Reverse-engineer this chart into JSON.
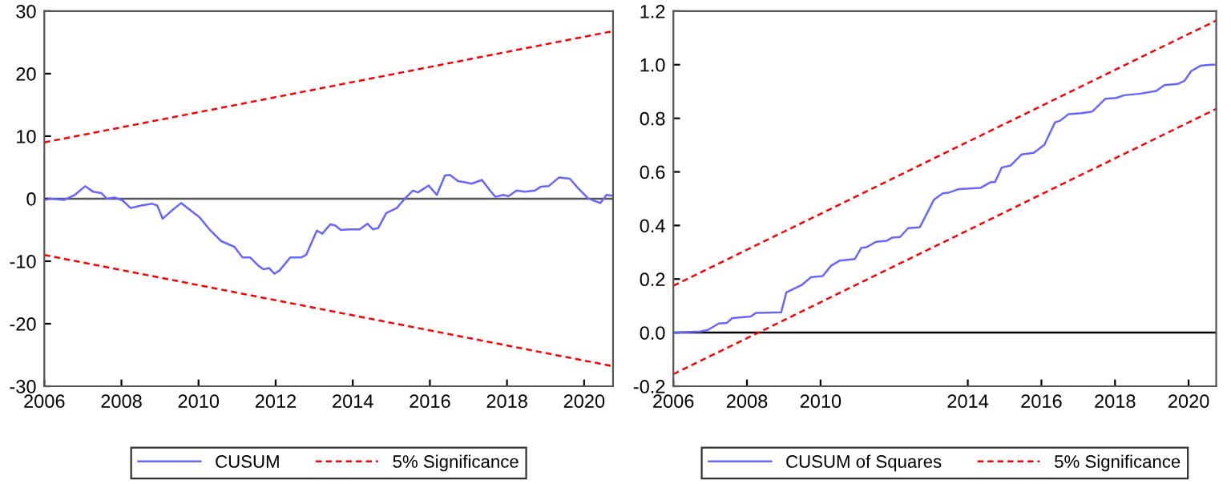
{
  "chart_data": [
    {
      "type": "line",
      "xlim": [
        2006.0,
        2020.75
      ],
      "ylim": [
        -30,
        30
      ],
      "xticks": [
        2006,
        2008,
        2010,
        2012,
        2014,
        2016,
        2018,
        2020
      ],
      "yticks": [
        -30,
        -20,
        -10,
        0,
        10,
        20,
        30
      ],
      "legend": "bottom",
      "grid": false,
      "ref_lines": [
        {
          "axis": "y",
          "value": 0,
          "color": "#555555"
        }
      ],
      "series": [
        {
          "name": "CUSUM",
          "color": "#6666ff",
          "line_style": "solid",
          "x": [
            2006.0,
            2006.17,
            2006.51,
            2006.79,
            2007.06,
            2007.27,
            2007.48,
            2007.62,
            2007.82,
            2008.03,
            2008.24,
            2008.51,
            2008.79,
            2008.93,
            2009.07,
            2009.27,
            2009.55,
            2009.76,
            2010.03,
            2010.31,
            2010.59,
            2010.93,
            2011.14,
            2011.34,
            2011.55,
            2011.69,
            2011.83,
            2011.97,
            2012.1,
            2012.38,
            2012.66,
            2012.79,
            2013.07,
            2013.21,
            2013.42,
            2013.55,
            2013.69,
            2013.9,
            2014.18,
            2014.38,
            2014.52,
            2014.66,
            2014.87,
            2015.14,
            2015.35,
            2015.56,
            2015.69,
            2015.97,
            2016.18,
            2016.39,
            2016.52,
            2016.73,
            2016.94,
            2017.08,
            2017.35,
            2017.56,
            2017.7,
            2017.9,
            2018.04,
            2018.25,
            2018.46,
            2018.73,
            2018.87,
            2019.08,
            2019.35,
            2019.63,
            2019.84,
            2020.11,
            2020.42,
            2020.58,
            2020.71
          ],
          "values": [
            -0.2,
            0,
            -0.2,
            0.6,
            2.0,
            1.1,
            0.9,
            0,
            0.2,
            -0.3,
            -1.5,
            -1.1,
            -0.8,
            -1.1,
            -3.2,
            -2.1,
            -0.7,
            -1.7,
            -3.0,
            -5.1,
            -6.8,
            -7.7,
            -9.4,
            -9.4,
            -10.7,
            -11.3,
            -11.1,
            -12.0,
            -11.5,
            -9.4,
            -9.4,
            -9.0,
            -5.1,
            -5.6,
            -4.1,
            -4.3,
            -5.0,
            -4.9,
            -4.9,
            -4.0,
            -4.9,
            -4.7,
            -2.3,
            -1.5,
            0,
            1.3,
            1.0,
            2.1,
            0.6,
            3.7,
            3.8,
            2.8,
            2.6,
            2.4,
            3.0,
            1.3,
            0.3,
            0.6,
            0.4,
            1.3,
            1.1,
            1.3,
            1.9,
            2.0,
            3.4,
            3.2,
            1.7,
            0,
            -0.7,
            0.6,
            0.5
          ]
        },
        {
          "name": "5% Significance",
          "color": "#ff0000",
          "line_style": "dashed",
          "x": [
            2006.0,
            2020.75
          ],
          "values": [
            9,
            26.8
          ]
        },
        {
          "color": "#ff0000",
          "line_style": "dashed",
          "x": [
            2006.0,
            2020.75
          ],
          "values": [
            -9,
            -26.8
          ]
        }
      ]
    },
    {
      "type": "line",
      "xlim": [
        2006.0,
        2020.75
      ],
      "ylim": [
        -0.2,
        1.2
      ],
      "xticks": [
        2006,
        2008,
        2010,
        2014,
        2016,
        2018,
        2020
      ],
      "yticks": [
        {
          "value": -0.2,
          "label": "-0.2"
        },
        {
          "value": 0,
          "label": "0.0"
        },
        0.2,
        0.4,
        0.6,
        0.8,
        {
          "value": 1,
          "label": "1.0"
        },
        1.2
      ],
      "legend": "bottom",
      "grid": false,
      "ref_lines": [
        {
          "axis": "y",
          "value": 0,
          "color": "#000000"
        }
      ],
      "series": [
        {
          "name": "CUSUM of Squares",
          "color": "#6666ff",
          "line_style": "solid",
          "x": [
            2006.03,
            2006.73,
            2006.94,
            2007.23,
            2007.45,
            2007.6,
            2008.1,
            2008.25,
            2008.93,
            2009.07,
            2009.48,
            2009.74,
            2010.06,
            2010.28,
            2010.52,
            2010.93,
            2011.11,
            2011.25,
            2011.51,
            2011.8,
            2011.95,
            2012.16,
            2012.38,
            2012.7,
            2013.08,
            2013.32,
            2013.47,
            2013.76,
            2014.34,
            2014.63,
            2014.74,
            2014.92,
            2015.17,
            2015.46,
            2015.79,
            2016.08,
            2016.37,
            2016.51,
            2016.73,
            2017.09,
            2017.38,
            2017.74,
            2018.03,
            2018.25,
            2018.69,
            2019.12,
            2019.34,
            2019.7,
            2019.89,
            2020.07,
            2020.32,
            2020.61,
            2020.7
          ],
          "values": [
            0,
            0.004,
            0.01,
            0.034,
            0.036,
            0.054,
            0.06,
            0.074,
            0.076,
            0.15,
            0.177,
            0.207,
            0.211,
            0.249,
            0.269,
            0.275,
            0.317,
            0.319,
            0.339,
            0.343,
            0.355,
            0.357,
            0.39,
            0.394,
            0.496,
            0.52,
            0.522,
            0.536,
            0.54,
            0.562,
            0.562,
            0.616,
            0.624,
            0.665,
            0.671,
            0.701,
            0.785,
            0.791,
            0.815,
            0.819,
            0.825,
            0.873,
            0.876,
            0.886,
            0.892,
            0.902,
            0.924,
            0.928,
            0.94,
            0.976,
            0.996,
            1.0,
            1.0
          ]
        },
        {
          "name": "5% Significance",
          "color": "#ff0000",
          "line_style": "dashed",
          "x": [
            2006.0,
            2020.75
          ],
          "values": [
            0.175,
            1.165
          ]
        },
        {
          "color": "#ff0000",
          "line_style": "dashed",
          "x": [
            2006.0,
            2020.75
          ],
          "values": [
            -0.155,
            0.835
          ]
        }
      ]
    }
  ]
}
